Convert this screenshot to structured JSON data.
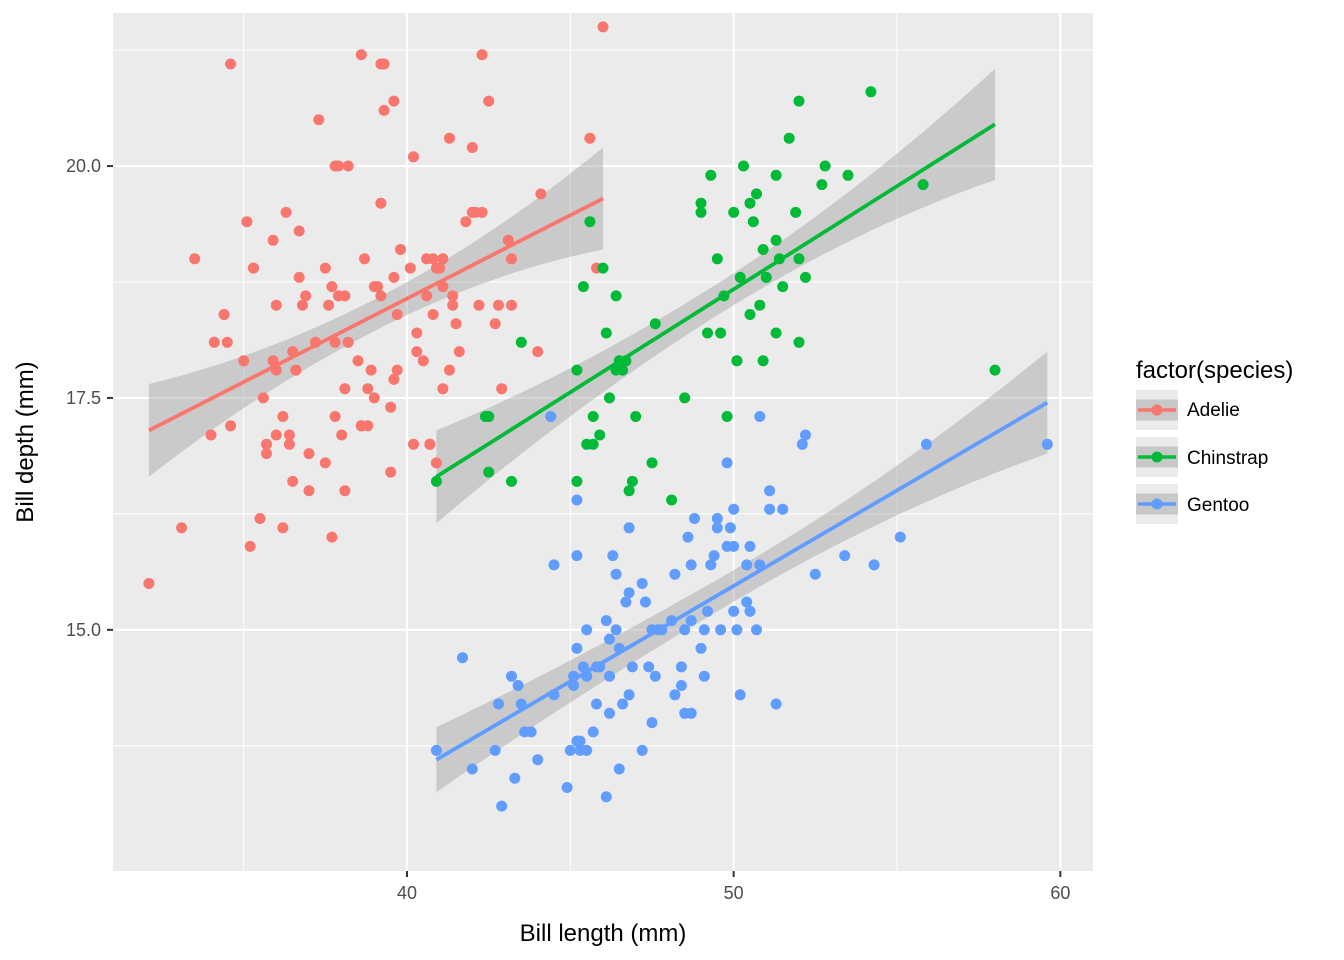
{
  "chart_data": {
    "type": "scatter",
    "title": "",
    "xlabel": "Bill length (mm)",
    "ylabel": "Bill depth (mm)",
    "xlim": [
      31,
      61
    ],
    "ylim": [
      12.4,
      21.65
    ],
    "x_ticks": [
      {
        "value": 40,
        "label": "40"
      },
      {
        "value": 50,
        "label": "50"
      },
      {
        "value": 60,
        "label": "60"
      }
    ],
    "y_ticks": [
      {
        "value": 15,
        "label": "15.0"
      },
      {
        "value": 17.5,
        "label": "17.5"
      },
      {
        "value": 20,
        "label": "20.0"
      }
    ],
    "legend": {
      "title": "factor(species)",
      "position": "right",
      "entries": [
        {
          "name": "Adelie",
          "color": "#F8766D"
        },
        {
          "name": "Chinstrap",
          "color": "#00BA38"
        },
        {
          "name": "Gentoo",
          "color": "#619CFF"
        }
      ]
    },
    "series": [
      {
        "name": "Adelie",
        "color": "#F8766D",
        "fit": {
          "x": [
            32.1,
            46.0
          ],
          "y": [
            17.15,
            19.65
          ],
          "se_start": 0.5,
          "se_end": 0.55
        },
        "points": [
          [
            32.1,
            15.5
          ],
          [
            33.1,
            16.1
          ],
          [
            33.5,
            19.0
          ],
          [
            34.0,
            17.1
          ],
          [
            34.1,
            18.1
          ],
          [
            34.4,
            18.4
          ],
          [
            34.5,
            18.1
          ],
          [
            34.6,
            21.1
          ],
          [
            34.6,
            17.2
          ],
          [
            35.0,
            17.9
          ],
          [
            35.1,
            19.4
          ],
          [
            35.2,
            15.9
          ],
          [
            35.3,
            18.9
          ],
          [
            35.5,
            16.2
          ],
          [
            35.6,
            17.5
          ],
          [
            35.7,
            17.0
          ],
          [
            35.9,
            19.2
          ],
          [
            36.0,
            17.8
          ],
          [
            36.0,
            18.5
          ],
          [
            36.2,
            17.3
          ],
          [
            36.3,
            19.5
          ],
          [
            36.4,
            17.0
          ],
          [
            36.5,
            16.6
          ],
          [
            36.6,
            17.8
          ],
          [
            36.7,
            18.8
          ],
          [
            36.8,
            18.5
          ],
          [
            36.9,
            18.6
          ],
          [
            37.0,
            16.9
          ],
          [
            37.2,
            18.1
          ],
          [
            37.3,
            20.5
          ],
          [
            37.6,
            18.5
          ],
          [
            37.7,
            18.7
          ],
          [
            37.8,
            20.0
          ],
          [
            37.9,
            18.6
          ],
          [
            38.1,
            16.5
          ],
          [
            38.1,
            17.6
          ],
          [
            38.2,
            18.1
          ],
          [
            38.6,
            21.2
          ],
          [
            38.6,
            17.2
          ],
          [
            38.7,
            19.0
          ],
          [
            38.8,
            17.6
          ],
          [
            39.0,
            18.7
          ],
          [
            39.1,
            18.7
          ],
          [
            39.2,
            19.6
          ],
          [
            39.3,
            20.6
          ],
          [
            39.5,
            17.4
          ],
          [
            39.6,
            18.8
          ],
          [
            39.7,
            18.4
          ],
          [
            39.8,
            19.1
          ],
          [
            40.1,
            18.9
          ],
          [
            40.2,
            20.1
          ],
          [
            40.3,
            18.0
          ],
          [
            40.5,
            17.9
          ],
          [
            40.6,
            18.6
          ],
          [
            40.7,
            17.0
          ],
          [
            40.8,
            18.4
          ],
          [
            40.9,
            16.8
          ],
          [
            41.1,
            19.0
          ],
          [
            41.3,
            20.3
          ],
          [
            41.4,
            18.5
          ],
          [
            41.5,
            18.3
          ],
          [
            41.6,
            18.0
          ],
          [
            41.8,
            19.4
          ],
          [
            42.0,
            20.2
          ],
          [
            42.2,
            18.5
          ],
          [
            42.3,
            21.2
          ],
          [
            42.5,
            20.7
          ],
          [
            42.7,
            18.3
          ],
          [
            42.8,
            18.5
          ],
          [
            42.9,
            17.6
          ],
          [
            43.1,
            19.2
          ],
          [
            43.2,
            18.5
          ],
          [
            44.1,
            19.7
          ],
          [
            44.0,
            18.0
          ],
          [
            45.6,
            20.3
          ],
          [
            45.8,
            18.9
          ],
          [
            46.0,
            21.5
          ],
          [
            37.5,
            18.9
          ],
          [
            38.8,
            17.2
          ],
          [
            35.9,
            17.9
          ],
          [
            38.2,
            20.0
          ],
          [
            37.8,
            17.3
          ],
          [
            40.3,
            18.2
          ],
          [
            39.7,
            17.8
          ],
          [
            36.7,
            19.3
          ],
          [
            37.5,
            16.8
          ],
          [
            39.3,
            21.1
          ],
          [
            38.9,
            17.8
          ],
          [
            41.1,
            17.6
          ],
          [
            39.6,
            17.7
          ],
          [
            34.4,
            18.4
          ],
          [
            40.9,
            18.9
          ],
          [
            36.2,
            16.1
          ],
          [
            42.1,
            19.5
          ],
          [
            35.7,
            16.9
          ],
          [
            41.3,
            17.8
          ],
          [
            37.7,
            16.0
          ],
          [
            38.6,
            17.2
          ],
          [
            39.6,
            20.7
          ],
          [
            41.1,
            18.7
          ],
          [
            36.6,
            17.8
          ],
          [
            35.3,
            18.9
          ],
          [
            40.2,
            17.0
          ],
          [
            36.4,
            17.1
          ],
          [
            42.0,
            19.5
          ],
          [
            39.2,
            21.1
          ],
          [
            38.1,
            18.6
          ],
          [
            37.0,
            16.5
          ],
          [
            40.7,
            17.0
          ],
          [
            36.0,
            17.1
          ],
          [
            39.0,
            17.5
          ],
          [
            37.8,
            18.1
          ],
          [
            40.6,
            19.0
          ],
          [
            41.4,
            18.6
          ],
          [
            38.5,
            17.9
          ],
          [
            42.3,
            19.5
          ],
          [
            39.5,
            16.7
          ],
          [
            38.0,
            17.1
          ],
          [
            37.9,
            20.0
          ],
          [
            43.2,
            19.0
          ],
          [
            36.5,
            18.0
          ],
          [
            39.2,
            18.6
          ],
          [
            41.0,
            18.9
          ],
          [
            40.8,
            19.0
          ]
        ]
      },
      {
        "name": "Chinstrap",
        "color": "#00BA38",
        "fit": {
          "x": [
            40.9,
            58.0
          ],
          "y": [
            16.65,
            20.45
          ],
          "se_start": 0.5,
          "se_end": 0.6
        },
        "points": [
          [
            40.9,
            16.6
          ],
          [
            42.4,
            17.3
          ],
          [
            42.5,
            17.3
          ],
          [
            42.5,
            16.7
          ],
          [
            43.2,
            16.6
          ],
          [
            43.5,
            18.1
          ],
          [
            45.2,
            17.8
          ],
          [
            45.2,
            16.6
          ],
          [
            45.4,
            18.7
          ],
          [
            45.5,
            17.0
          ],
          [
            45.6,
            19.4
          ],
          [
            45.7,
            17.3
          ],
          [
            45.7,
            17.0
          ],
          [
            45.9,
            17.1
          ],
          [
            46.0,
            18.9
          ],
          [
            46.1,
            18.2
          ],
          [
            46.2,
            17.5
          ],
          [
            46.4,
            18.6
          ],
          [
            46.4,
            17.8
          ],
          [
            46.5,
            17.9
          ],
          [
            46.6,
            17.8
          ],
          [
            46.7,
            17.9
          ],
          [
            46.8,
            16.5
          ],
          [
            46.9,
            16.6
          ],
          [
            47.0,
            17.3
          ],
          [
            47.5,
            16.8
          ],
          [
            47.6,
            18.3
          ],
          [
            48.1,
            16.4
          ],
          [
            48.5,
            17.5
          ],
          [
            49.0,
            19.6
          ],
          [
            49.0,
            19.5
          ],
          [
            49.2,
            18.2
          ],
          [
            49.3,
            19.9
          ],
          [
            49.5,
            19.0
          ],
          [
            49.6,
            18.2
          ],
          [
            49.7,
            18.6
          ],
          [
            49.8,
            17.3
          ],
          [
            50.0,
            19.5
          ],
          [
            50.1,
            17.9
          ],
          [
            50.2,
            18.8
          ],
          [
            50.3,
            20.0
          ],
          [
            50.5,
            19.6
          ],
          [
            50.5,
            18.4
          ],
          [
            50.6,
            19.4
          ],
          [
            50.7,
            19.7
          ],
          [
            50.8,
            18.5
          ],
          [
            50.9,
            19.1
          ],
          [
            50.9,
            17.9
          ],
          [
            51.0,
            18.8
          ],
          [
            51.3,
            19.9
          ],
          [
            51.3,
            18.2
          ],
          [
            51.3,
            19.2
          ],
          [
            51.4,
            19.0
          ],
          [
            51.5,
            18.7
          ],
          [
            51.7,
            20.3
          ],
          [
            51.9,
            19.5
          ],
          [
            52.0,
            18.1
          ],
          [
            52.0,
            20.7
          ],
          [
            52.0,
            19.0
          ],
          [
            52.2,
            18.8
          ],
          [
            52.7,
            19.8
          ],
          [
            52.8,
            20.0
          ],
          [
            53.5,
            19.9
          ],
          [
            54.2,
            20.8
          ],
          [
            55.8,
            19.8
          ],
          [
            58.0,
            17.8
          ]
        ]
      },
      {
        "name": "Gentoo",
        "color": "#619CFF",
        "fit": {
          "x": [
            40.9,
            59.6
          ],
          "y": [
            13.6,
            17.45
          ],
          "se_start": 0.35,
          "se_end": 0.55
        },
        "points": [
          [
            40.9,
            13.7
          ],
          [
            41.7,
            14.7
          ],
          [
            42.0,
            13.5
          ],
          [
            42.7,
            13.7
          ],
          [
            42.8,
            14.2
          ],
          [
            42.9,
            13.1
          ],
          [
            43.2,
            14.5
          ],
          [
            43.3,
            13.4
          ],
          [
            43.4,
            14.4
          ],
          [
            43.5,
            14.2
          ],
          [
            43.6,
            13.9
          ],
          [
            43.8,
            13.9
          ],
          [
            44.0,
            13.6
          ],
          [
            44.4,
            17.3
          ],
          [
            44.5,
            15.7
          ],
          [
            44.5,
            14.3
          ],
          [
            44.9,
            13.3
          ],
          [
            45.0,
            13.7
          ],
          [
            45.1,
            14.4
          ],
          [
            45.1,
            14.5
          ],
          [
            45.2,
            13.8
          ],
          [
            45.2,
            14.8
          ],
          [
            45.2,
            16.4
          ],
          [
            45.2,
            15.8
          ],
          [
            45.3,
            13.7
          ],
          [
            45.3,
            13.8
          ],
          [
            45.4,
            14.6
          ],
          [
            45.5,
            13.7
          ],
          [
            45.5,
            14.5
          ],
          [
            45.5,
            15.0
          ],
          [
            45.7,
            13.9
          ],
          [
            45.8,
            14.6
          ],
          [
            45.8,
            14.2
          ],
          [
            45.9,
            14.6
          ],
          [
            46.1,
            13.2
          ],
          [
            46.1,
            15.1
          ],
          [
            46.2,
            14.1
          ],
          [
            46.2,
            14.5
          ],
          [
            46.2,
            14.9
          ],
          [
            46.3,
            15.8
          ],
          [
            46.4,
            15.6
          ],
          [
            46.4,
            15.0
          ],
          [
            46.5,
            13.5
          ],
          [
            46.5,
            14.8
          ],
          [
            46.6,
            14.2
          ],
          [
            46.7,
            15.3
          ],
          [
            46.8,
            16.1
          ],
          [
            46.8,
            15.4
          ],
          [
            46.8,
            14.3
          ],
          [
            46.9,
            14.6
          ],
          [
            47.2,
            13.7
          ],
          [
            47.2,
            15.5
          ],
          [
            47.3,
            15.3
          ],
          [
            47.4,
            14.6
          ],
          [
            47.5,
            14.0
          ],
          [
            47.5,
            15.0
          ],
          [
            47.6,
            14.5
          ],
          [
            47.7,
            15.0
          ],
          [
            47.8,
            15.0
          ],
          [
            48.1,
            15.1
          ],
          [
            48.2,
            14.3
          ],
          [
            48.2,
            15.6
          ],
          [
            48.4,
            14.4
          ],
          [
            48.4,
            14.6
          ],
          [
            48.5,
            15.0
          ],
          [
            48.5,
            14.1
          ],
          [
            48.6,
            16.0
          ],
          [
            48.7,
            14.1
          ],
          [
            48.7,
            15.1
          ],
          [
            48.7,
            15.7
          ],
          [
            48.8,
            16.2
          ],
          [
            49.0,
            14.8
          ],
          [
            49.1,
            14.5
          ],
          [
            49.1,
            15.0
          ],
          [
            49.2,
            15.2
          ],
          [
            49.3,
            15.7
          ],
          [
            49.4,
            15.8
          ],
          [
            49.5,
            16.1
          ],
          [
            49.5,
            16.2
          ],
          [
            49.6,
            15.0
          ],
          [
            49.8,
            15.9
          ],
          [
            49.8,
            16.8
          ],
          [
            49.9,
            16.1
          ],
          [
            50.0,
            15.2
          ],
          [
            50.0,
            15.9
          ],
          [
            50.0,
            16.3
          ],
          [
            50.1,
            15.0
          ],
          [
            50.2,
            14.3
          ],
          [
            50.4,
            15.7
          ],
          [
            50.4,
            15.3
          ],
          [
            50.5,
            15.2
          ],
          [
            50.5,
            15.9
          ],
          [
            50.7,
            15.0
          ],
          [
            50.8,
            15.7
          ],
          [
            50.8,
            17.3
          ],
          [
            51.1,
            16.3
          ],
          [
            51.1,
            16.5
          ],
          [
            51.3,
            14.2
          ],
          [
            51.5,
            16.3
          ],
          [
            52.1,
            17.0
          ],
          [
            52.2,
            17.1
          ],
          [
            52.5,
            15.6
          ],
          [
            53.4,
            15.8
          ],
          [
            54.3,
            15.7
          ],
          [
            55.1,
            16.0
          ],
          [
            55.9,
            17.0
          ],
          [
            59.6,
            17.0
          ]
        ]
      }
    ]
  }
}
